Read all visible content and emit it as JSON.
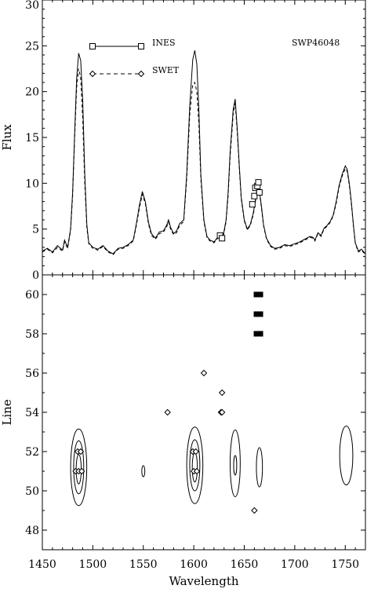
{
  "chart_data": [
    {
      "type": "line",
      "ylabel": "Flux",
      "xlim": [
        1450,
        1770
      ],
      "ylim": [
        0,
        30
      ],
      "yticks": [
        0,
        5,
        10,
        15,
        20,
        25,
        30
      ],
      "annotation": "SWP46048",
      "legend": {
        "placement": "top-left",
        "entries": [
          {
            "label": "INES",
            "style": "solid-square"
          },
          {
            "label": "SWET",
            "style": "dashed-diamond"
          }
        ]
      },
      "series": [
        {
          "name": "INES",
          "points": [
            [
              1450,
              2.6
            ],
            [
              1455,
              2.9
            ],
            [
              1460,
              2.5
            ],
            [
              1465,
              3.2
            ],
            [
              1470,
              2.7
            ],
            [
              1472,
              3.8
            ],
            [
              1475,
              3.0
            ],
            [
              1478,
              5.0
            ],
            [
              1480,
              9.0
            ],
            [
              1482,
              15.5
            ],
            [
              1484,
              21.5
            ],
            [
              1486,
              24.2
            ],
            [
              1488,
              23.4
            ],
            [
              1490,
              19.0
            ],
            [
              1492,
              11.0
            ],
            [
              1494,
              5.5
            ],
            [
              1496,
              3.5
            ],
            [
              1500,
              3.0
            ],
            [
              1505,
              2.8
            ],
            [
              1510,
              3.2
            ],
            [
              1515,
              2.6
            ],
            [
              1520,
              2.3
            ],
            [
              1525,
              2.9
            ],
            [
              1530,
              3.0
            ],
            [
              1535,
              3.3
            ],
            [
              1540,
              3.8
            ],
            [
              1543,
              5.5
            ],
            [
              1546,
              7.5
            ],
            [
              1549,
              9.1
            ],
            [
              1552,
              8.0
            ],
            [
              1555,
              5.8
            ],
            [
              1558,
              4.5
            ],
            [
              1562,
              4.0
            ],
            [
              1566,
              4.7
            ],
            [
              1570,
              4.8
            ],
            [
              1573,
              5.4
            ],
            [
              1575,
              6.0
            ],
            [
              1577,
              5.2
            ],
            [
              1580,
              4.5
            ],
            [
              1583,
              4.8
            ],
            [
              1586,
              5.6
            ],
            [
              1590,
              6.0
            ],
            [
              1593,
              11.0
            ],
            [
              1596,
              18.5
            ],
            [
              1599,
              23.5
            ],
            [
              1601,
              24.5
            ],
            [
              1603,
              23.0
            ],
            [
              1605,
              18.0
            ],
            [
              1607,
              11.0
            ],
            [
              1610,
              6.0
            ],
            [
              1613,
              4.2
            ],
            [
              1616,
              3.8
            ],
            [
              1620,
              3.6
            ],
            [
              1623,
              4.0
            ],
            [
              1626,
              4.5
            ],
            [
              1629,
              4.2
            ],
            [
              1632,
              6.0
            ],
            [
              1634,
              9.0
            ],
            [
              1636,
              13.5
            ],
            [
              1638,
              16.5
            ],
            [
              1639,
              18.0
            ],
            [
              1641,
              19.2
            ],
            [
              1643,
              16.0
            ],
            [
              1645,
              12.0
            ],
            [
              1647,
              8.5
            ],
            [
              1650,
              6.0
            ],
            [
              1653,
              5.0
            ],
            [
              1656,
              5.5
            ],
            [
              1659,
              6.8
            ],
            [
              1661,
              8.2
            ],
            [
              1663,
              9.6
            ],
            [
              1665,
              9.2
            ],
            [
              1667,
              7.5
            ],
            [
              1669,
              5.5
            ],
            [
              1672,
              4.0
            ],
            [
              1676,
              3.2
            ],
            [
              1680,
              2.9
            ],
            [
              1685,
              3.0
            ],
            [
              1690,
              3.3
            ],
            [
              1695,
              3.2
            ],
            [
              1700,
              3.4
            ],
            [
              1705,
              3.6
            ],
            [
              1710,
              3.9
            ],
            [
              1715,
              4.2
            ],
            [
              1718,
              4.1
            ],
            [
              1720,
              3.8
            ],
            [
              1723,
              4.6
            ],
            [
              1726,
              4.3
            ],
            [
              1729,
              5.1
            ],
            [
              1732,
              5.4
            ],
            [
              1735,
              5.8
            ],
            [
              1738,
              6.5
            ],
            [
              1741,
              8.0
            ],
            [
              1744,
              9.8
            ],
            [
              1747,
              11.0
            ],
            [
              1750,
              11.9
            ],
            [
              1752,
              11.5
            ],
            [
              1754,
              10.0
            ],
            [
              1756,
              8.0
            ],
            [
              1758,
              5.5
            ],
            [
              1760,
              3.5
            ],
            [
              1763,
              2.6
            ],
            [
              1766,
              2.8
            ],
            [
              1770,
              2.3
            ]
          ]
        },
        {
          "name": "SWET",
          "points": [
            [
              1450,
              2.5
            ],
            [
              1455,
              2.8
            ],
            [
              1460,
              2.4
            ],
            [
              1465,
              3.0
            ],
            [
              1470,
              2.6
            ],
            [
              1472,
              3.6
            ],
            [
              1475,
              2.9
            ],
            [
              1478,
              4.8
            ],
            [
              1480,
              8.6
            ],
            [
              1482,
              15.0
            ],
            [
              1484,
              20.5
            ],
            [
              1486,
              22.5
            ],
            [
              1488,
              21.5
            ],
            [
              1490,
              17.0
            ],
            [
              1492,
              10.0
            ],
            [
              1494,
              5.2
            ],
            [
              1496,
              3.4
            ],
            [
              1500,
              2.9
            ],
            [
              1505,
              2.7
            ],
            [
              1510,
              3.1
            ],
            [
              1515,
              2.5
            ],
            [
              1520,
              2.2
            ],
            [
              1525,
              2.8
            ],
            [
              1530,
              2.9
            ],
            [
              1535,
              3.2
            ],
            [
              1540,
              3.7
            ],
            [
              1543,
              5.3
            ],
            [
              1546,
              7.2
            ],
            [
              1549,
              8.8
            ],
            [
              1552,
              7.8
            ],
            [
              1555,
              5.6
            ],
            [
              1558,
              4.3
            ],
            [
              1562,
              3.9
            ],
            [
              1566,
              4.5
            ],
            [
              1570,
              4.7
            ],
            [
              1573,
              5.2
            ],
            [
              1575,
              5.8
            ],
            [
              1577,
              5.0
            ],
            [
              1580,
              4.4
            ],
            [
              1583,
              4.6
            ],
            [
              1586,
              5.4
            ],
            [
              1590,
              5.8
            ],
            [
              1593,
              10.5
            ],
            [
              1596,
              17.5
            ],
            [
              1599,
              20.8
            ],
            [
              1601,
              21.0
            ],
            [
              1603,
              20.0
            ],
            [
              1605,
              16.5
            ],
            [
              1607,
              10.5
            ],
            [
              1610,
              5.8
            ],
            [
              1613,
              4.1
            ],
            [
              1616,
              3.7
            ],
            [
              1620,
              3.5
            ],
            [
              1623,
              3.9
            ],
            [
              1626,
              4.4
            ],
            [
              1629,
              4.1
            ],
            [
              1632,
              5.8
            ],
            [
              1634,
              8.6
            ],
            [
              1636,
              13.0
            ],
            [
              1638,
              16.0
            ],
            [
              1639,
              17.5
            ],
            [
              1641,
              18.8
            ],
            [
              1643,
              15.6
            ],
            [
              1645,
              11.7
            ],
            [
              1647,
              8.3
            ],
            [
              1650,
              5.9
            ],
            [
              1653,
              4.9
            ],
            [
              1656,
              5.4
            ],
            [
              1659,
              6.6
            ],
            [
              1661,
              8.0
            ],
            [
              1663,
              9.3
            ],
            [
              1665,
              9.0
            ],
            [
              1667,
              7.3
            ],
            [
              1669,
              5.4
            ],
            [
              1672,
              3.9
            ],
            [
              1676,
              3.1
            ],
            [
              1680,
              2.8
            ],
            [
              1685,
              2.9
            ],
            [
              1690,
              3.2
            ],
            [
              1695,
              3.1
            ],
            [
              1700,
              3.3
            ],
            [
              1705,
              3.5
            ],
            [
              1710,
              3.8
            ],
            [
              1715,
              4.1
            ],
            [
              1718,
              4.0
            ],
            [
              1720,
              3.7
            ],
            [
              1723,
              4.5
            ],
            [
              1726,
              4.2
            ],
            [
              1729,
              5.0
            ],
            [
              1732,
              5.3
            ],
            [
              1735,
              5.7
            ],
            [
              1738,
              6.4
            ],
            [
              1741,
              7.8
            ],
            [
              1744,
              9.6
            ],
            [
              1747,
              10.8
            ],
            [
              1750,
              11.6
            ],
            [
              1752,
              11.3
            ],
            [
              1754,
              9.8
            ],
            [
              1756,
              7.8
            ],
            [
              1758,
              5.4
            ],
            [
              1760,
              3.4
            ],
            [
              1763,
              2.5
            ],
            [
              1766,
              2.7
            ],
            [
              1770,
              2.2
            ]
          ]
        }
      ],
      "markers": [
        {
          "x": 1626,
          "y": 4.3
        },
        {
          "x": 1628,
          "y": 4.0
        },
        {
          "x": 1658,
          "y": 7.7
        },
        {
          "x": 1660,
          "y": 8.6
        },
        {
          "x": 1661,
          "y": 9.5
        },
        {
          "x": 1663,
          "y": 9.7
        },
        {
          "x": 1664,
          "y": 10.1
        },
        {
          "x": 1665,
          "y": 9.0
        }
      ]
    },
    {
      "type": "contour",
      "xlabel": "Wavelength",
      "ylabel": "Line",
      "xlim": [
        1450,
        1770
      ],
      "ylim": [
        47,
        61
      ],
      "xticks": [
        1450,
        1500,
        1550,
        1600,
        1650,
        1700,
        1750
      ],
      "yticks": [
        48,
        50,
        52,
        54,
        56,
        58,
        60
      ],
      "contours": [
        {
          "cx": 1486,
          "cy": 51.2,
          "rx": 8,
          "ry": 1.95
        },
        {
          "cx": 1486,
          "cy": 51.2,
          "rx": 5,
          "ry": 1.35
        },
        {
          "cx": 1486,
          "cy": 51.1,
          "rx": 2.5,
          "ry": 0.75
        },
        {
          "cx": 1601,
          "cy": 51.3,
          "rx": 8,
          "ry": 1.95
        },
        {
          "cx": 1601,
          "cy": 51.3,
          "rx": 5,
          "ry": 1.3
        },
        {
          "cx": 1601,
          "cy": 51.2,
          "rx": 2.5,
          "ry": 0.75
        },
        {
          "cx": 1641,
          "cy": 51.4,
          "rx": 5,
          "ry": 1.7
        },
        {
          "cx": 1641,
          "cy": 51.3,
          "rx": 1.5,
          "ry": 0.5
        },
        {
          "cx": 1665,
          "cy": 51.2,
          "rx": 3,
          "ry": 1.0
        },
        {
          "cx": 1550,
          "cy": 51.0,
          "rx": 1.5,
          "ry": 0.28
        },
        {
          "cx": 1751,
          "cy": 51.8,
          "rx": 6.5,
          "ry": 1.5
        }
      ],
      "diamonds": [
        {
          "x": 1483,
          "y": 51.0
        },
        {
          "x": 1486,
          "y": 51.0
        },
        {
          "x": 1489,
          "y": 51.0
        },
        {
          "x": 1485,
          "y": 52.0
        },
        {
          "x": 1488,
          "y": 52.0
        },
        {
          "x": 1600,
          "y": 51.0
        },
        {
          "x": 1603,
          "y": 51.0
        },
        {
          "x": 1599,
          "y": 52.0
        },
        {
          "x": 1602,
          "y": 52.0
        },
        {
          "x": 1627,
          "y": 54.0
        },
        {
          "x": 1628,
          "y": 54.0
        },
        {
          "x": 1574,
          "y": 54.0
        },
        {
          "x": 1628,
          "y": 55.0
        },
        {
          "x": 1610,
          "y": 56.0
        },
        {
          "x": 1660,
          "y": 49.0
        }
      ],
      "blocks": [
        {
          "x": 1664,
          "y": 58.0
        },
        {
          "x": 1664,
          "y": 59.0
        },
        {
          "x": 1664,
          "y": 60.0
        }
      ]
    }
  ]
}
